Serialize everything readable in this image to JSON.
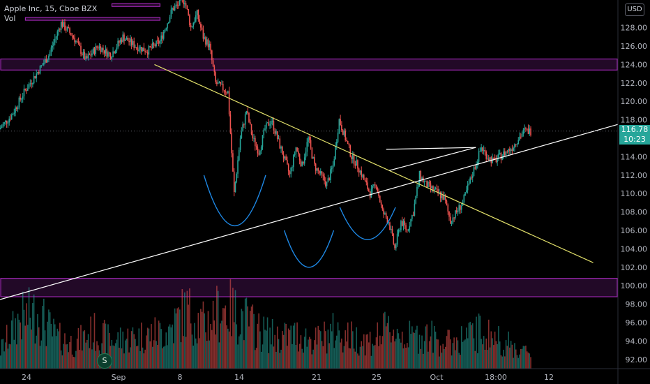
{
  "legend": {
    "symbol": "Apple Inc, 15, Cboe BZX",
    "vol": "Vol"
  },
  "currency_button": "USD",
  "last_price_tag": {
    "price": "116.78",
    "countdown": "10:23"
  },
  "dividend_badge": "S",
  "colors": {
    "up": "#26a69a",
    "down": "#ef5350",
    "zone": "#9c27b0",
    "trend_yellow": "#e2e06a",
    "trend_white": "#ffffff",
    "pattern_arc": "#1e88e5"
  },
  "chart_data": {
    "type": "candlestick",
    "title": "Apple Inc, 15, Cboe BZX",
    "y_axis": {
      "min": 91,
      "max": 131,
      "ticks": [
        92,
        94,
        96,
        98,
        100,
        102,
        104,
        106,
        108,
        110,
        112,
        114,
        116,
        118,
        120,
        122,
        124,
        126,
        128
      ]
    },
    "x_axis": {
      "ticks": [
        "24",
        "Sep",
        "8",
        "14",
        "21",
        "25",
        "Oct",
        "18:00",
        "12"
      ]
    },
    "last_price": 116.78,
    "price_path": [
      [
        0,
        117
      ],
      [
        2,
        118.5
      ],
      [
        4,
        121
      ],
      [
        6,
        123
      ],
      [
        8,
        125
      ],
      [
        10,
        128.5
      ],
      [
        12,
        127
      ],
      [
        14,
        124.5
      ],
      [
        16,
        126
      ],
      [
        18,
        125
      ],
      [
        20,
        127
      ],
      [
        22,
        126
      ],
      [
        24,
        125.5
      ],
      [
        26,
        126.5
      ],
      [
        28,
        130
      ],
      [
        30,
        131
      ],
      [
        31,
        128
      ],
      [
        32,
        129.5
      ],
      [
        33,
        127
      ],
      [
        34,
        126
      ],
      [
        35,
        122
      ],
      [
        37,
        121
      ],
      [
        38,
        110
      ],
      [
        39,
        116
      ],
      [
        40,
        119
      ],
      [
        41,
        116
      ],
      [
        42,
        114.5
      ],
      [
        43,
        117
      ],
      [
        44,
        118
      ],
      [
        45,
        116
      ],
      [
        47,
        112
      ],
      [
        48,
        115
      ],
      [
        49,
        113
      ],
      [
        50,
        116
      ],
      [
        51,
        113
      ],
      [
        53,
        111
      ],
      [
        54,
        113
      ],
      [
        55,
        118
      ],
      [
        56,
        116
      ],
      [
        57,
        114
      ],
      [
        58,
        113
      ],
      [
        60,
        110
      ],
      [
        61,
        111
      ],
      [
        62,
        108
      ],
      [
        63,
        107
      ],
      [
        64,
        104
      ],
      [
        65,
        107
      ],
      [
        66,
        106
      ],
      [
        67,
        108
      ],
      [
        68,
        112
      ],
      [
        69,
        111
      ],
      [
        70,
        110.5
      ],
      [
        71,
        110
      ],
      [
        72,
        109.5
      ],
      [
        73,
        107
      ],
      [
        74,
        108
      ],
      [
        75,
        109
      ],
      [
        76,
        111
      ],
      [
        77,
        113
      ],
      [
        78,
        115
      ],
      [
        79,
        114
      ],
      [
        80,
        113.5
      ],
      [
        81,
        114
      ],
      [
        82,
        114.5
      ],
      [
        83,
        115
      ],
      [
        84,
        116
      ],
      [
        85,
        116.8
      ],
      [
        86,
        116.78
      ]
    ],
    "volume_path": [
      [
        0,
        0.3
      ],
      [
        3,
        0.8
      ],
      [
        6,
        0.9
      ],
      [
        9,
        0.5
      ],
      [
        12,
        0.4
      ],
      [
        15,
        0.6
      ],
      [
        18,
        0.45
      ],
      [
        21,
        0.5
      ],
      [
        24,
        0.55
      ],
      [
        27,
        0.6
      ],
      [
        30,
        0.95
      ],
      [
        33,
        0.7
      ],
      [
        36,
        1.0
      ],
      [
        39,
        0.85
      ],
      [
        42,
        0.6
      ],
      [
        45,
        0.5
      ],
      [
        48,
        0.55
      ],
      [
        51,
        0.45
      ],
      [
        54,
        0.6
      ],
      [
        57,
        0.5
      ],
      [
        60,
        0.45
      ],
      [
        63,
        0.65
      ],
      [
        66,
        0.5
      ],
      [
        69,
        0.55
      ],
      [
        72,
        0.4
      ],
      [
        75,
        0.5
      ],
      [
        78,
        0.6
      ],
      [
        81,
        0.45
      ],
      [
        84,
        0.3
      ],
      [
        86,
        0.25
      ]
    ],
    "zones": [
      {
        "from": 123.4,
        "to": 124.6,
        "x0": 0,
        "x1": 100
      },
      {
        "from": 98.8,
        "to": 100.8,
        "x0": 0,
        "x1": 100
      },
      {
        "from": 130.3,
        "to": 130.6,
        "x0": 18,
        "x1": 26
      },
      {
        "from": 128.8,
        "to": 129.1,
        "x0": 4,
        "x1": 26
      }
    ],
    "trendlines": [
      {
        "color": "yellow",
        "from": [
          25,
          124
        ],
        "to": [
          96,
          102.5
        ]
      },
      {
        "color": "white",
        "from": [
          0,
          98.5
        ],
        "to": [
          100,
          117.5
        ]
      },
      {
        "color": "white",
        "from": [
          62.5,
          114.8
        ],
        "to": [
          77,
          115
        ]
      },
      {
        "color": "white",
        "from": [
          63,
          112.5
        ],
        "to": [
          77,
          115
        ]
      }
    ],
    "pattern_arcs": [
      {
        "x0": 33,
        "x1": 43,
        "top": 112,
        "bottom": 106.5
      },
      {
        "x0": 46,
        "x1": 54,
        "top": 106,
        "bottom": 102
      },
      {
        "x0": 55,
        "x1": 64,
        "top": 108.5,
        "bottom": 105
      }
    ]
  }
}
